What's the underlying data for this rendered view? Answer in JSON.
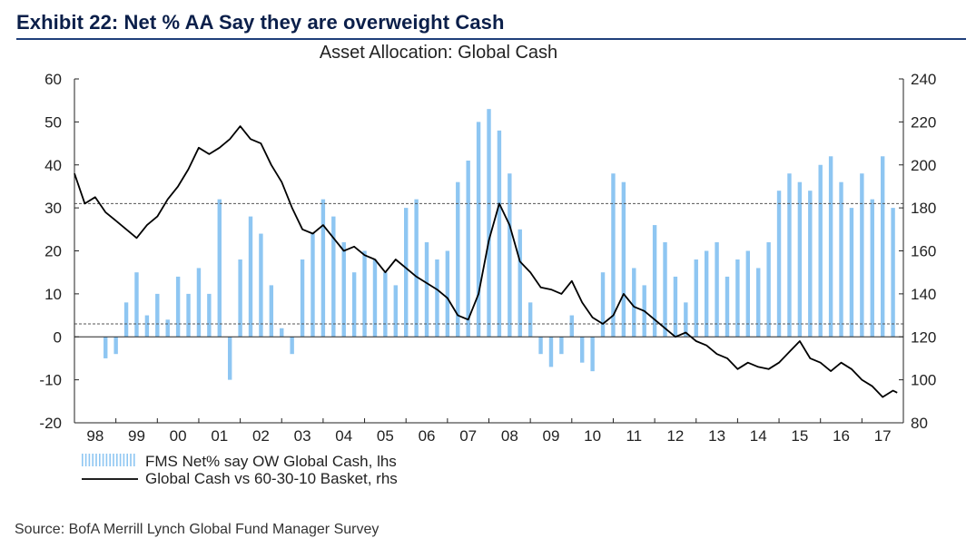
{
  "exhibit_title": "Exhibit 22: Net % AA Say they are overweight Cash",
  "source": "Source:  BofA Merrill Lynch Global Fund Manager Survey",
  "colors": {
    "bars": "#8ec6f2",
    "line": "#000000",
    "dashed": "#555555",
    "title": "#0b1f4a",
    "rule": "#1f3f7a"
  },
  "chart_data": {
    "type": "bar+line",
    "title": "Asset Allocation: Global Cash",
    "left_axis": {
      "range": [
        -20,
        60
      ],
      "ticks": [
        -20,
        -10,
        0,
        10,
        20,
        30,
        40,
        50,
        60
      ],
      "labels": [
        "-20",
        "-10",
        "0",
        "10",
        "20",
        "30",
        "40",
        "50",
        "60"
      ]
    },
    "right_axis": {
      "range": [
        80,
        240
      ],
      "ticks": [
        80,
        100,
        120,
        140,
        160,
        180,
        200,
        220,
        240
      ],
      "labels": [
        "80",
        "100",
        "120",
        "140",
        "160",
        "180",
        "200",
        "220",
        "240"
      ]
    },
    "x_range": [
      1998.0,
      2018.0
    ],
    "x_tick_labels": [
      "98",
      "99",
      "00",
      "01",
      "02",
      "03",
      "04",
      "05",
      "06",
      "07",
      "08",
      "09",
      "10",
      "11",
      "12",
      "13",
      "14",
      "15",
      "16",
      "17"
    ],
    "reference_lines": [
      {
        "axis": "left",
        "value": 31,
        "style": "dashed"
      },
      {
        "axis": "left",
        "value": 3,
        "style": "dashed"
      }
    ],
    "legend": [
      "FMS Net% say OW Global Cash, lhs",
      "Global Cash vs 60-30-10 Basket, rhs"
    ],
    "series": [
      {
        "name": "FMS Net% say OW Global Cash, lhs",
        "axis": "left",
        "kind": "bar",
        "x": [
          1998.75,
          1999.0,
          1999.25,
          1999.5,
          1999.75,
          2000.0,
          2000.25,
          2000.5,
          2000.75,
          2001.0,
          2001.25,
          2001.5,
          2001.75,
          2002.0,
          2002.25,
          2002.5,
          2002.75,
          2003.0,
          2003.25,
          2003.5,
          2003.75,
          2004.0,
          2004.25,
          2004.5,
          2004.75,
          2005.0,
          2005.25,
          2005.5,
          2005.75,
          2006.0,
          2006.25,
          2006.5,
          2006.75,
          2007.0,
          2007.25,
          2007.5,
          2007.75,
          2008.0,
          2008.25,
          2008.5,
          2008.75,
          2009.0,
          2009.25,
          2009.5,
          2009.75,
          2010.0,
          2010.25,
          2010.5,
          2010.75,
          2011.0,
          2011.25,
          2011.5,
          2011.75,
          2012.0,
          2012.25,
          2012.5,
          2012.75,
          2013.0,
          2013.25,
          2013.5,
          2013.75,
          2014.0,
          2014.25,
          2014.5,
          2014.75,
          2015.0,
          2015.25,
          2015.5,
          2015.75,
          2016.0,
          2016.25,
          2016.5,
          2016.75,
          2017.0,
          2017.25,
          2017.5,
          2017.75
        ],
        "values": [
          -5,
          -4,
          8,
          15,
          5,
          10,
          4,
          14,
          10,
          16,
          10,
          32,
          -10,
          18,
          28,
          24,
          12,
          2,
          -4,
          18,
          24,
          32,
          28,
          22,
          15,
          20,
          18,
          15,
          12,
          30,
          32,
          22,
          18,
          20,
          36,
          41,
          50,
          53,
          48,
          38,
          25,
          8,
          -4,
          -7,
          -4,
          5,
          -6,
          -8,
          15,
          38,
          36,
          16,
          12,
          26,
          22,
          14,
          8,
          18,
          20,
          22,
          14,
          18,
          20,
          16,
          22,
          34,
          38,
          36,
          34,
          40,
          42,
          36,
          30,
          38,
          32,
          42,
          30
        ]
      },
      {
        "name": "Global Cash vs 60-30-10 Basket, rhs",
        "axis": "right",
        "kind": "line",
        "x": [
          1998.0,
          1998.25,
          1998.5,
          1998.75,
          1999.0,
          1999.25,
          1999.5,
          1999.75,
          2000.0,
          2000.25,
          2000.5,
          2000.75,
          2001.0,
          2001.25,
          2001.5,
          2001.75,
          2002.0,
          2002.25,
          2002.5,
          2002.75,
          2003.0,
          2003.25,
          2003.5,
          2003.75,
          2004.0,
          2004.25,
          2004.5,
          2004.75,
          2005.0,
          2005.25,
          2005.5,
          2005.75,
          2006.0,
          2006.25,
          2006.5,
          2006.75,
          2007.0,
          2007.25,
          2007.5,
          2007.75,
          2008.0,
          2008.25,
          2008.5,
          2008.75,
          2009.0,
          2009.25,
          2009.5,
          2009.75,
          2010.0,
          2010.25,
          2010.5,
          2010.75,
          2011.0,
          2011.25,
          2011.5,
          2011.75,
          2012.0,
          2012.25,
          2012.5,
          2012.75,
          2013.0,
          2013.25,
          2013.5,
          2013.75,
          2014.0,
          2014.25,
          2014.5,
          2014.75,
          2015.0,
          2015.25,
          2015.5,
          2015.75,
          2016.0,
          2016.25,
          2016.5,
          2016.75,
          2017.0,
          2017.25,
          2017.5,
          2017.75,
          2017.85
        ],
        "values": [
          196,
          182,
          185,
          178,
          174,
          170,
          166,
          172,
          176,
          184,
          190,
          198,
          208,
          205,
          208,
          212,
          218,
          212,
          210,
          200,
          192,
          180,
          170,
          168,
          172,
          166,
          160,
          162,
          158,
          156,
          150,
          156,
          152,
          148,
          145,
          142,
          138,
          130,
          128,
          140,
          165,
          182,
          172,
          155,
          150,
          143,
          142,
          140,
          146,
          136,
          129,
          126,
          130,
          140,
          134,
          132,
          128,
          124,
          120,
          122,
          118,
          116,
          112,
          110,
          105,
          108,
          106,
          105,
          108,
          113,
          118,
          110,
          108,
          104,
          108,
          105,
          100,
          97,
          92,
          95,
          94
        ]
      }
    ]
  }
}
